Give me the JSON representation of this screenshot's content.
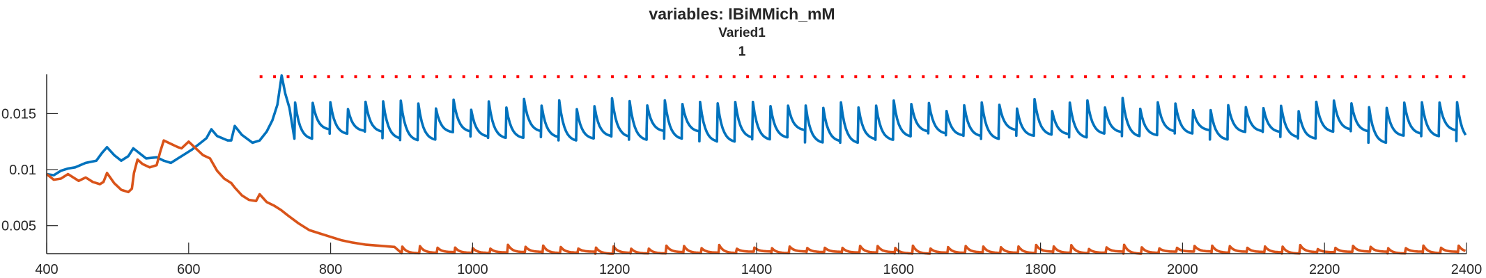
{
  "chart_data": {
    "type": "line",
    "title": [
      "variables: IBiMMich_mM",
      "Varied1",
      "1"
    ],
    "xlabel": "",
    "ylabel": "",
    "xlim": [
      400,
      2400
    ],
    "ylim": [
      0.0025,
      0.0185
    ],
    "xticks": [
      400,
      600,
      800,
      1000,
      1200,
      1400,
      1600,
      1800,
      2000,
      2200,
      2400
    ],
    "xtick_labels": [
      "400",
      "600",
      "800",
      "1000",
      "1200",
      "1400",
      "1600",
      "1800",
      "2000",
      "2200",
      "2400"
    ],
    "yticks": [
      0.005,
      0.01,
      0.015
    ],
    "ytick_labels": [
      "0.005",
      "0.01",
      "0.015"
    ],
    "grid": false,
    "series": [
      {
        "color": "#0072BD",
        "style": "solid",
        "before_pulses": [
          [
            400,
            0.0096
          ],
          [
            410,
            0.0095
          ],
          [
            420,
            0.0099
          ],
          [
            430,
            0.0101
          ],
          [
            440,
            0.0102
          ],
          [
            455,
            0.0106
          ],
          [
            470,
            0.0108
          ],
          [
            478,
            0.0115
          ],
          [
            485,
            0.012
          ],
          [
            495,
            0.0113
          ],
          [
            505,
            0.0108
          ],
          [
            515,
            0.0112
          ],
          [
            522,
            0.0119
          ],
          [
            530,
            0.0115
          ],
          [
            540,
            0.011
          ],
          [
            555,
            0.0111
          ],
          [
            565,
            0.0108
          ],
          [
            575,
            0.0106
          ],
          [
            585,
            0.011
          ],
          [
            595,
            0.0114
          ],
          [
            605,
            0.0118
          ],
          [
            615,
            0.0123
          ],
          [
            625,
            0.0128
          ],
          [
            632,
            0.0136
          ],
          [
            640,
            0.013
          ],
          [
            655,
            0.0126
          ],
          [
            660,
            0.0126
          ],
          [
            665,
            0.0139
          ],
          [
            675,
            0.0131
          ],
          [
            690,
            0.0124
          ],
          [
            700,
            0.0126
          ],
          [
            710,
            0.0134
          ],
          [
            718,
            0.0144
          ],
          [
            725,
            0.0158
          ],
          [
            731,
            0.0184
          ],
          [
            736,
            0.0168
          ],
          [
            742,
            0.0155
          ]
        ],
        "pulses": {
          "start": 749,
          "period": 24.8,
          "end": 2400,
          "peak_mean": 0.0158,
          "peak_jitter": 0.0006,
          "trough_mean": 0.013,
          "trough_jitter": 0.0006,
          "decay_time": 7
        }
      },
      {
        "color": "#D95319",
        "style": "solid",
        "before_pulses": [
          [
            400,
            0.0096
          ],
          [
            410,
            0.0091
          ],
          [
            420,
            0.0092
          ],
          [
            430,
            0.0096
          ],
          [
            445,
            0.009
          ],
          [
            455,
            0.0093
          ],
          [
            465,
            0.0089
          ],
          [
            475,
            0.0087
          ],
          [
            480,
            0.0089
          ],
          [
            485,
            0.0097
          ],
          [
            495,
            0.0088
          ],
          [
            505,
            0.0082
          ],
          [
            515,
            0.008
          ],
          [
            520,
            0.0083
          ],
          [
            523,
            0.0097
          ],
          [
            528,
            0.0109
          ],
          [
            535,
            0.0105
          ],
          [
            545,
            0.0102
          ],
          [
            555,
            0.0104
          ],
          [
            560,
            0.0116
          ],
          [
            565,
            0.0126
          ],
          [
            575,
            0.0123
          ],
          [
            585,
            0.012
          ],
          [
            590,
            0.0119
          ],
          [
            600,
            0.0125
          ],
          [
            610,
            0.0119
          ],
          [
            620,
            0.0113
          ],
          [
            630,
            0.011
          ],
          [
            640,
            0.0099
          ],
          [
            650,
            0.0092
          ],
          [
            660,
            0.0088
          ],
          [
            665,
            0.0084
          ],
          [
            675,
            0.0077
          ],
          [
            685,
            0.0073
          ],
          [
            695,
            0.0072
          ],
          [
            700,
            0.0078
          ],
          [
            710,
            0.0071
          ],
          [
            720,
            0.0068
          ],
          [
            730,
            0.0064
          ],
          [
            740,
            0.0059
          ],
          [
            755,
            0.0052
          ],
          [
            770,
            0.0046
          ],
          [
            785,
            0.0043
          ],
          [
            800,
            0.004
          ],
          [
            815,
            0.0037
          ],
          [
            830,
            0.0035
          ],
          [
            850,
            0.0033
          ],
          [
            870,
            0.0032
          ],
          [
            890,
            0.0031
          ]
        ],
        "pulses": {
          "start": 900,
          "period": 24.8,
          "end": 2400,
          "peak_mean": 0.0031,
          "peak_jitter": 0.0002,
          "trough_mean": 0.0026,
          "trough_jitter": 0.0001,
          "decay_time": 6
        }
      },
      {
        "color": "#FF0000",
        "style": "dotted",
        "points": [
          [
            700,
            0.0183
          ],
          [
            2400,
            0.0183
          ]
        ]
      }
    ]
  }
}
